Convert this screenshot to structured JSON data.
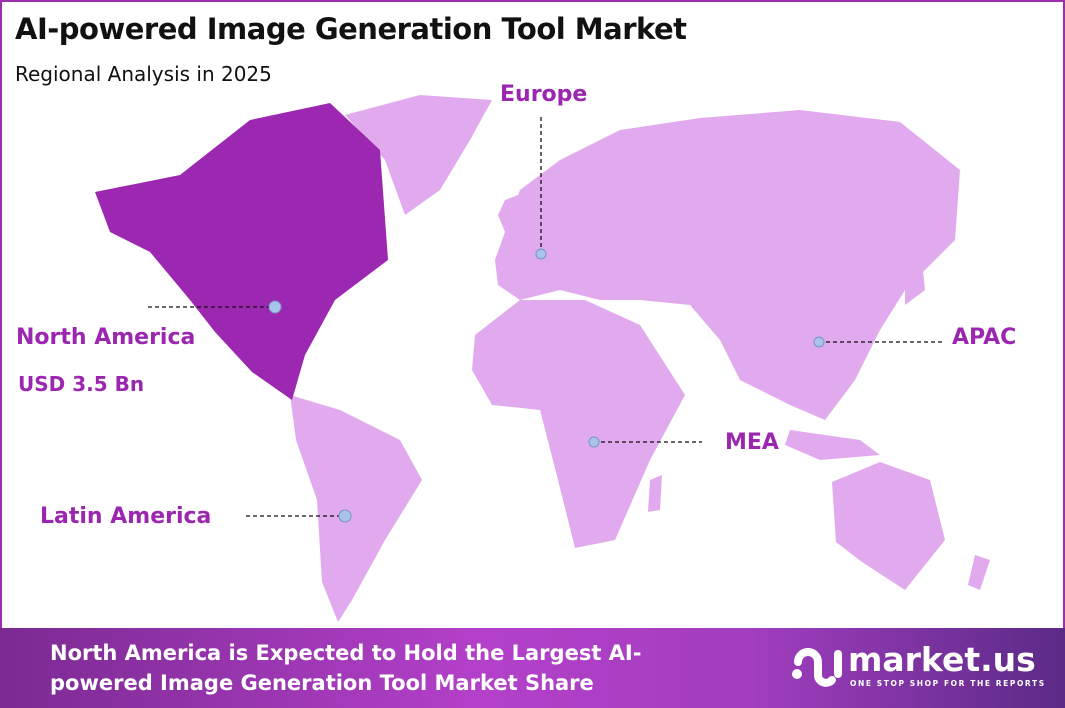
{
  "header": {
    "title": "AI-powered Image Generation Tool Market",
    "subtitle": "Regional Analysis in 2025"
  },
  "regions": [
    {
      "name": "North America",
      "value": "USD 3.5 Bn",
      "highlighted": true
    },
    {
      "name": "Europe"
    },
    {
      "name": "APAC"
    },
    {
      "name": "MEA"
    },
    {
      "name": "Latin America"
    }
  ],
  "colors": {
    "highlight": "#9c27b0",
    "land": "#e2aaee",
    "label": "#9b27b0",
    "marker": "#a9c4ea"
  },
  "footer": {
    "text": "North America is Expected to Hold the Largest AI-powered Image Generation Tool Market Share"
  },
  "logo": {
    "name": "market.us",
    "tagline": "ONE STOP SHOP FOR THE REPORTS"
  }
}
